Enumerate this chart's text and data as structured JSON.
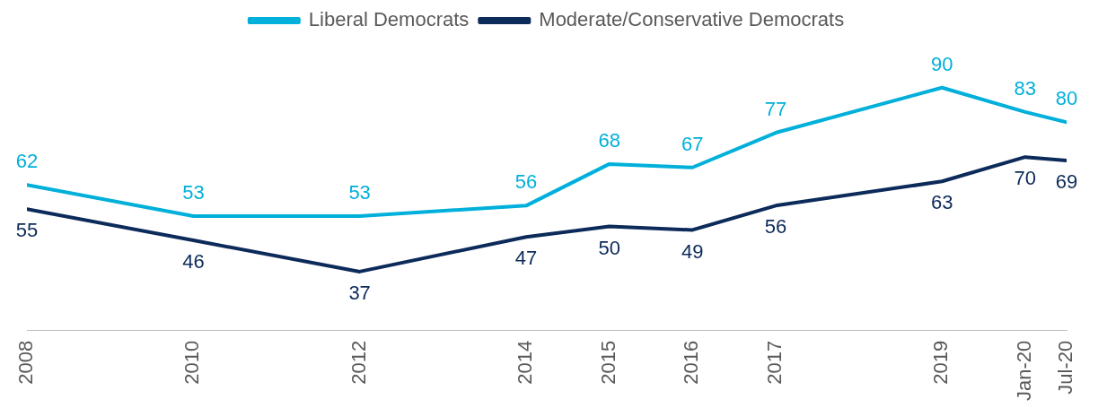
{
  "chart_data": {
    "type": "line",
    "x": [
      "2008",
      "2010",
      "2012",
      "2014",
      "2015",
      "2016",
      "2017",
      "2019",
      "2020-01",
      "2020-07"
    ],
    "xlim": [
      "2008",
      "2020-07"
    ],
    "xticks": [
      {
        "value": "2008",
        "label": "2008"
      },
      {
        "value": "2010",
        "label": "2010"
      },
      {
        "value": "2012",
        "label": "2012"
      },
      {
        "value": "2014",
        "label": "2014"
      },
      {
        "value": "2015",
        "label": "2015"
      },
      {
        "value": "2016",
        "label": "2016"
      },
      {
        "value": "2017",
        "label": "2017"
      },
      {
        "value": "2019",
        "label": "2019"
      },
      {
        "value": "2020-01",
        "label": "Jan-20"
      },
      {
        "value": "2020-07",
        "label": "Jul-20"
      }
    ],
    "series": [
      {
        "name": "Liberal Democrats",
        "color": "#00b0da",
        "values": [
          62,
          53,
          53,
          56,
          68,
          67,
          77,
          90,
          83,
          80
        ]
      },
      {
        "name": "Moderate/Conservative Democrats",
        "color": "#0c2a5a",
        "values": [
          55,
          46,
          37,
          47,
          50,
          49,
          56,
          63,
          70,
          69
        ]
      }
    ],
    "data_labels": true,
    "legend": "top",
    "grid": false,
    "tick_labels": "x",
    "marker": "none",
    "line_style": "solid"
  }
}
